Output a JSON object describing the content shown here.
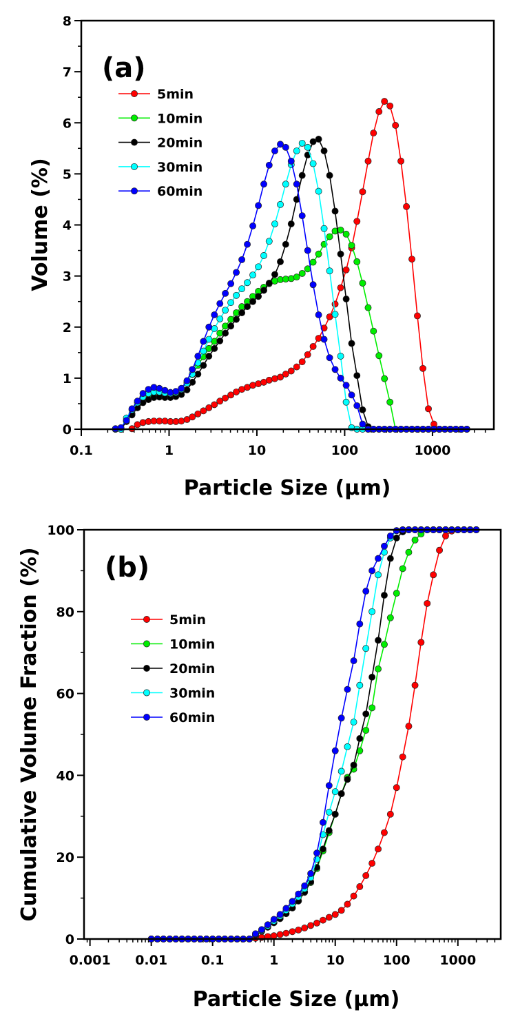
{
  "chart_data": [
    {
      "type": "line",
      "panel_label": "(a)",
      "title": "",
      "xlabel": "Particle Size (μm)",
      "ylabel": "Volume (%)",
      "xscale": "log",
      "xlim": [
        0.1,
        5000
      ],
      "ylim": [
        0,
        8
      ],
      "xticks": [
        0.1,
        1,
        10,
        100,
        1000
      ],
      "xtick_labels": [
        "0.1",
        "1",
        "10",
        "100",
        "1000"
      ],
      "yticks": [
        0,
        1,
        2,
        3,
        4,
        5,
        6,
        7,
        8
      ],
      "ytick_labels": [
        "0",
        "1",
        "2",
        "3",
        "4",
        "5",
        "6",
        "7",
        "8"
      ],
      "grid": false,
      "legend_position": "top-left",
      "x": [
        0.245,
        0.283,
        0.327,
        0.378,
        0.436,
        0.504,
        0.582,
        0.672,
        0.776,
        0.897,
        1.036,
        1.196,
        1.38,
        1.6,
        1.84,
        2.13,
        2.46,
        2.84,
        3.28,
        3.79,
        4.37,
        5.05,
        5.83,
        6.74,
        7.78,
        8.99,
        10.4,
        12,
        13.8,
        16,
        18.5,
        21.3,
        24.6,
        28.4,
        32.8,
        37.9,
        43.7,
        50.5,
        58.3,
        67.4,
        77.8,
        89.9,
        104,
        120,
        138,
        160,
        185,
        213,
        246,
        284,
        328,
        379,
        437,
        505,
        583,
        673,
        778,
        899,
        1038,
        1199,
        1384,
        1599,
        1846,
        2132,
        2462
      ],
      "series": [
        {
          "name": "5min",
          "color": "#ff0000",
          "values": [
            null,
            null,
            null,
            0.01,
            0.09,
            0.13,
            0.15,
            0.16,
            0.16,
            0.16,
            0.15,
            0.15,
            0.16,
            0.19,
            0.24,
            0.3,
            0.36,
            0.42,
            0.48,
            0.55,
            0.61,
            0.67,
            0.73,
            0.78,
            0.82,
            0.86,
            0.89,
            0.92,
            0.96,
            0.99,
            1.02,
            1.08,
            1.14,
            1.22,
            1.32,
            1.46,
            1.62,
            1.78,
            1.98,
            2.2,
            2.45,
            2.77,
            3.12,
            3.55,
            4.07,
            4.65,
            5.25,
            5.8,
            6.22,
            6.42,
            6.33,
            5.95,
            5.25,
            4.36,
            3.33,
            2.22,
            1.19,
            0.4,
            0.1,
            0,
            0,
            0,
            0,
            0,
            0
          ]
        },
        {
          "name": "10min",
          "color": "#00ee00",
          "values": [
            0,
            0,
            0.18,
            0.3,
            0.47,
            0.57,
            0.62,
            0.64,
            0.64,
            0.63,
            0.64,
            0.68,
            0.78,
            0.92,
            1.07,
            1.25,
            1.42,
            1.58,
            1.72,
            1.88,
            2.02,
            2.15,
            2.28,
            2.4,
            2.5,
            2.6,
            2.7,
            2.78,
            2.85,
            2.9,
            2.93,
            2.94,
            2.95,
            2.98,
            3.05,
            3.14,
            3.27,
            3.43,
            3.62,
            3.77,
            3.88,
            3.9,
            3.82,
            3.6,
            3.28,
            2.86,
            2.38,
            1.92,
            1.44,
            0.99,
            0.53,
            0,
            0,
            0,
            0,
            0,
            0,
            0,
            0,
            0,
            0,
            0,
            0,
            0,
            0
          ]
        },
        {
          "name": "20min",
          "color": "#000000",
          "values": [
            0,
            0,
            0.15,
            0.28,
            0.42,
            0.52,
            0.58,
            0.62,
            0.63,
            0.62,
            0.62,
            0.64,
            0.68,
            0.77,
            0.92,
            1.08,
            1.25,
            1.43,
            1.58,
            1.73,
            1.88,
            2.02,
            2.15,
            2.28,
            2.4,
            2.5,
            2.6,
            2.72,
            2.86,
            3.03,
            3.28,
            3.62,
            4.02,
            4.5,
            4.97,
            5.37,
            5.63,
            5.68,
            5.45,
            4.97,
            4.27,
            3.43,
            2.55,
            1.68,
            1.05,
            0.38,
            0.05,
            0,
            0,
            0,
            0,
            0,
            0,
            0,
            0,
            0,
            0,
            0,
            0,
            0,
            0,
            0,
            0,
            0,
            0
          ]
        },
        {
          "name": "30min",
          "color": "#00ffff",
          "values": [
            0,
            0,
            0.22,
            0.38,
            0.52,
            0.63,
            0.7,
            0.73,
            0.73,
            0.71,
            0.7,
            0.72,
            0.78,
            0.9,
            1.08,
            1.3,
            1.53,
            1.76,
            1.97,
            2.16,
            2.33,
            2.48,
            2.62,
            2.75,
            2.87,
            3.02,
            3.18,
            3.4,
            3.68,
            4.02,
            4.4,
            4.8,
            5.18,
            5.45,
            5.6,
            5.52,
            5.2,
            4.66,
            3.93,
            3.1,
            2.25,
            1.43,
            0.53,
            0.03,
            0,
            0,
            0,
            0,
            0,
            0,
            0,
            0,
            0,
            0,
            0,
            0,
            0,
            0,
            0,
            0,
            0,
            0,
            0,
            0,
            0
          ]
        },
        {
          "name": "60min",
          "color": "#0000ff",
          "values": [
            0.01,
            0.03,
            0.17,
            0.4,
            0.55,
            0.7,
            0.78,
            0.82,
            0.8,
            0.76,
            0.72,
            0.74,
            0.8,
            0.95,
            1.17,
            1.43,
            1.72,
            2.0,
            2.24,
            2.46,
            2.66,
            2.85,
            3.07,
            3.32,
            3.62,
            3.98,
            4.38,
            4.8,
            5.17,
            5.45,
            5.58,
            5.52,
            5.25,
            4.8,
            4.18,
            3.5,
            2.83,
            2.24,
            1.76,
            1.4,
            1.17,
            1.0,
            0.86,
            0.67,
            0.46,
            0.1,
            0,
            0,
            0,
            0,
            0,
            0,
            0,
            0,
            0,
            0,
            0,
            0,
            0,
            0,
            0,
            0,
            0,
            0,
            0
          ]
        }
      ]
    },
    {
      "type": "line",
      "panel_label": "(b)",
      "title": "",
      "xlabel": "Particle Size (μm)",
      "ylabel": "Cumulative Volume Fraction (%)",
      "xscale": "log",
      "xlim": [
        0.0008,
        5000
      ],
      "ylim": [
        0,
        100
      ],
      "xticks": [
        0.001,
        0.01,
        0.1,
        1,
        10,
        100,
        1000
      ],
      "xtick_labels": [
        "0.001",
        "0.01",
        "0.1",
        "1",
        "10",
        "100",
        "1000"
      ],
      "yticks": [
        0,
        20,
        40,
        60,
        80,
        100
      ],
      "ytick_labels": [
        "0",
        "20",
        "40",
        "60",
        "80",
        "100"
      ],
      "grid": false,
      "legend_position": "upper-left",
      "x": [
        0.01,
        0.0126,
        0.0158,
        0.02,
        0.0251,
        0.0316,
        0.0398,
        0.0501,
        0.0631,
        0.0794,
        0.1,
        0.126,
        0.158,
        0.2,
        0.251,
        0.316,
        0.398,
        0.501,
        0.631,
        0.794,
        1,
        1.26,
        1.58,
        2,
        2.51,
        3.16,
        3.98,
        5.01,
        6.31,
        7.94,
        10,
        12.6,
        15.8,
        20,
        25.1,
        31.6,
        39.8,
        50.1,
        63.1,
        79.4,
        100,
        126,
        158,
        200,
        251,
        316,
        398,
        501,
        631,
        794,
        1000,
        1259,
        1585,
        1995
      ],
      "series": [
        {
          "name": "5min",
          "color": "#ff0000",
          "values": [
            0,
            0,
            0,
            0,
            0,
            0,
            0,
            0,
            0,
            0,
            0,
            0,
            0,
            0,
            0,
            0,
            0,
            0.2,
            0.4,
            0.6,
            0.8,
            1.1,
            1.4,
            1.8,
            2.2,
            2.7,
            3.3,
            3.9,
            4.6,
            5.3,
            6.0,
            7.0,
            8.5,
            10.5,
            12.8,
            15.5,
            18.5,
            22,
            26,
            30.5,
            37,
            44.5,
            52,
            62,
            72.5,
            82,
            89,
            95,
            98.5,
            99.7,
            100,
            100,
            100,
            100
          ]
        },
        {
          "name": "10min",
          "color": "#00ee00",
          "values": [
            0,
            0,
            0,
            0,
            0,
            0,
            0,
            0,
            0,
            0,
            0,
            0,
            0,
            0,
            0,
            0,
            0,
            1.0,
            1.9,
            2.9,
            4.0,
            5.0,
            6.2,
            7.6,
            9.3,
            11.4,
            13.8,
            17.2,
            21.5,
            26,
            30.5,
            35.5,
            39.5,
            41.5,
            46,
            51,
            56.5,
            66,
            72,
            78.5,
            84.5,
            90.5,
            94.5,
            97.5,
            99,
            100,
            100,
            100,
            100,
            100,
            100,
            100,
            100,
            100
          ]
        },
        {
          "name": "20min",
          "color": "#000000",
          "values": [
            0,
            0,
            0,
            0,
            0,
            0,
            0,
            0,
            0,
            0,
            0,
            0,
            0,
            0,
            0,
            0,
            0,
            1.0,
            1.9,
            2.9,
            4.0,
            5.0,
            6.2,
            7.6,
            9.3,
            11.5,
            14.0,
            17.5,
            22.0,
            26.5,
            30.5,
            35.5,
            39.0,
            42.5,
            49,
            55,
            64,
            73,
            84,
            93,
            98,
            99.5,
            100,
            100,
            100,
            100,
            100,
            100,
            100,
            100,
            100,
            100,
            100,
            100
          ]
        },
        {
          "name": "30min",
          "color": "#00ffff",
          "values": [
            0,
            0,
            0,
            0,
            0,
            0,
            0,
            0,
            0,
            0,
            0,
            0,
            0,
            0,
            0,
            0,
            0,
            1.2,
            2.1,
            3.2,
            4.4,
            5.6,
            7.0,
            8.6,
            10.3,
            12.3,
            15.0,
            19.5,
            25.5,
            31,
            36,
            41,
            47,
            53,
            62,
            71,
            80,
            89,
            94.5,
            98,
            99.8,
            100,
            100,
            100,
            100,
            100,
            100,
            100,
            100,
            100,
            100,
            100,
            100,
            100
          ]
        },
        {
          "name": "60min",
          "color": "#0000ff",
          "values": [
            0,
            0,
            0,
            0,
            0,
            0,
            0,
            0,
            0,
            0,
            0,
            0,
            0,
            0,
            0,
            0,
            0,
            1.3,
            2.3,
            3.5,
            4.8,
            6.0,
            7.5,
            9.2,
            11.0,
            13.0,
            16.0,
            21.0,
            28.5,
            37.5,
            46,
            54,
            61,
            68,
            77,
            85,
            90,
            93,
            96,
            98.5,
            99.8,
            100,
            100,
            100,
            100,
            100,
            100,
            100,
            100,
            100,
            100,
            100,
            100,
            100
          ]
        }
      ]
    }
  ]
}
